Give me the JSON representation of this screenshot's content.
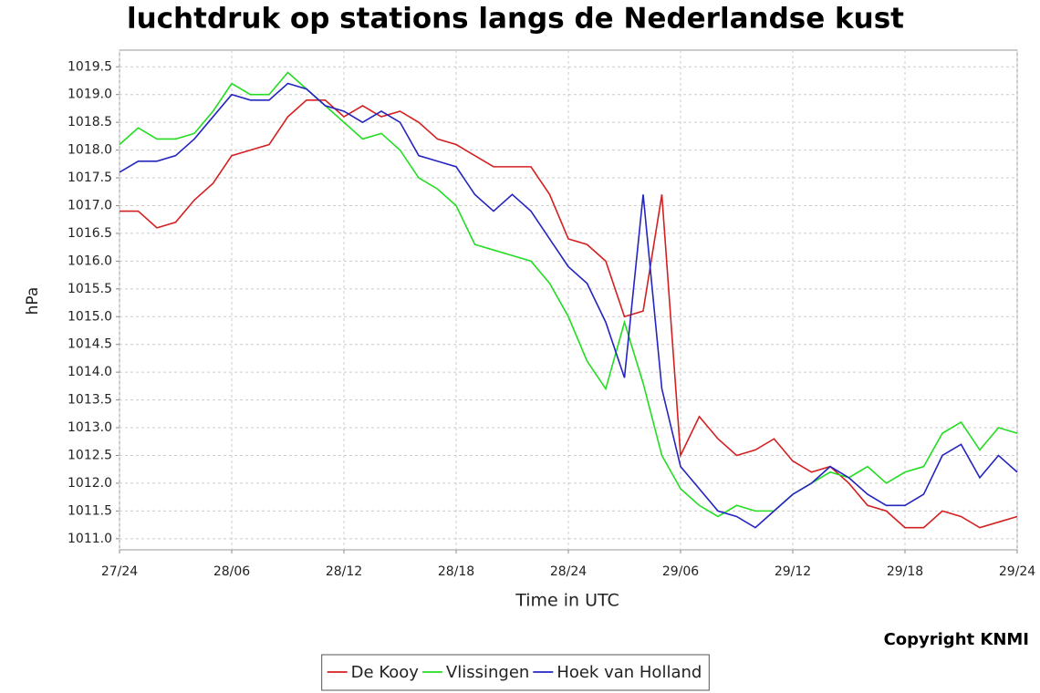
{
  "chart_data": {
    "type": "line",
    "title": "luchtdruk op stations langs de Nederlandse kust",
    "x_label": "Time in UTC",
    "y_label": "hPa",
    "copyright": "Copyright KNMI",
    "grid": true,
    "legend_position": "bottom",
    "xlim": [
      0,
      48
    ],
    "xticks": [
      {
        "value": 0,
        "label": "27/24"
      },
      {
        "value": 6,
        "label": "28/06"
      },
      {
        "value": 12,
        "label": "28/12"
      },
      {
        "value": 18,
        "label": "28/18"
      },
      {
        "value": 24,
        "label": "28/24"
      },
      {
        "value": 30,
        "label": "29/06"
      },
      {
        "value": 36,
        "label": "29/12"
      },
      {
        "value": 42,
        "label": "29/18"
      },
      {
        "value": 48,
        "label": "29/24"
      }
    ],
    "ylim": [
      1010.8,
      1019.8
    ],
    "yticks": [
      {
        "value": 1011,
        "label": "1011.0"
      },
      1011.5,
      {
        "value": 1012,
        "label": "1012.0"
      },
      1012.5,
      {
        "value": 1013,
        "label": "1013.0"
      },
      1013.5,
      {
        "value": 1014,
        "label": "1014.0"
      },
      1014.5,
      {
        "value": 1015,
        "label": "1015.0"
      },
      1015.5,
      {
        "value": 1016,
        "label": "1016.0"
      },
      1016.5,
      {
        "value": 1017,
        "label": "1017.0"
      },
      1017.5,
      {
        "value": 1018,
        "label": "1018.0"
      },
      1018.5,
      {
        "value": 1019,
        "label": "1019.0"
      },
      1019.5
    ],
    "x": [
      0,
      1,
      2,
      3,
      4,
      5,
      6,
      7,
      8,
      9,
      10,
      11,
      12,
      13,
      14,
      15,
      16,
      17,
      18,
      19,
      20,
      21,
      22,
      23,
      24,
      25,
      26,
      27,
      28,
      29,
      30,
      31,
      32,
      33,
      34,
      35,
      36,
      37,
      38,
      39,
      40,
      41,
      42,
      43,
      44,
      45,
      46,
      47,
      48
    ],
    "series": [
      {
        "name": "De Kooy",
        "color": "#d42020",
        "values": [
          1016.9,
          1016.9,
          1016.6,
          1016.7,
          1017.1,
          1017.4,
          1017.9,
          1018.0,
          1018.1,
          1018.6,
          1018.9,
          1018.9,
          1018.6,
          1018.8,
          1018.6,
          1018.7,
          1018.5,
          1018.2,
          1018.1,
          1017.9,
          1017.7,
          1017.7,
          1017.7,
          1017.2,
          1016.4,
          1016.3,
          1016.0,
          1015.0,
          1015.1,
          1017.2,
          1012.5,
          1013.2,
          1012.8,
          1012.5,
          1012.6,
          1012.8,
          1012.4,
          1012.2,
          1012.3,
          1012.0,
          1011.6,
          1011.5,
          1011.2,
          1011.2,
          1011.5,
          1011.4,
          1011.2,
          1011.3,
          1011.4
        ]
      },
      {
        "name": "Vlissingen",
        "color": "#22dd22",
        "values": [
          1018.1,
          1018.4,
          1018.2,
          1018.2,
          1018.3,
          1018.7,
          1019.2,
          1019.0,
          1019.0,
          1019.4,
          1019.1,
          1018.8,
          1018.5,
          1018.2,
          1018.3,
          1018.0,
          1017.5,
          1017.3,
          1017.0,
          1016.3,
          1016.2,
          1016.1,
          1016.0,
          1015.6,
          1015.0,
          1014.2,
          1013.7,
          1014.9,
          1013.8,
          1012.5,
          1011.9,
          1011.6,
          1011.4,
          1011.6,
          1011.5,
          1011.5,
          1011.8,
          1012.0,
          1012.2,
          1012.1,
          1012.3,
          1012.0,
          1012.2,
          1012.3,
          1012.9,
          1013.1,
          1012.6,
          1013.0,
          1012.9
        ]
      },
      {
        "name": "Hoek van Holland",
        "color": "#2424c0",
        "values": [
          1017.6,
          1017.8,
          1017.8,
          1017.9,
          1018.2,
          1018.6,
          1019.0,
          1018.9,
          1018.9,
          1019.2,
          1019.1,
          1018.8,
          1018.7,
          1018.5,
          1018.7,
          1018.5,
          1017.9,
          1017.8,
          1017.7,
          1017.2,
          1016.9,
          1017.2,
          1016.9,
          1016.4,
          1015.9,
          1015.6,
          1014.9,
          1013.9,
          1017.2,
          1013.7,
          1012.3,
          1011.9,
          1011.5,
          1011.4,
          1011.2,
          1011.5,
          1011.8,
          1012.0,
          1012.3,
          1012.1,
          1011.8,
          1011.6,
          1011.6,
          1011.8,
          1012.5,
          1012.7,
          1012.1,
          1012.5,
          1012.2
        ]
      }
    ]
  }
}
